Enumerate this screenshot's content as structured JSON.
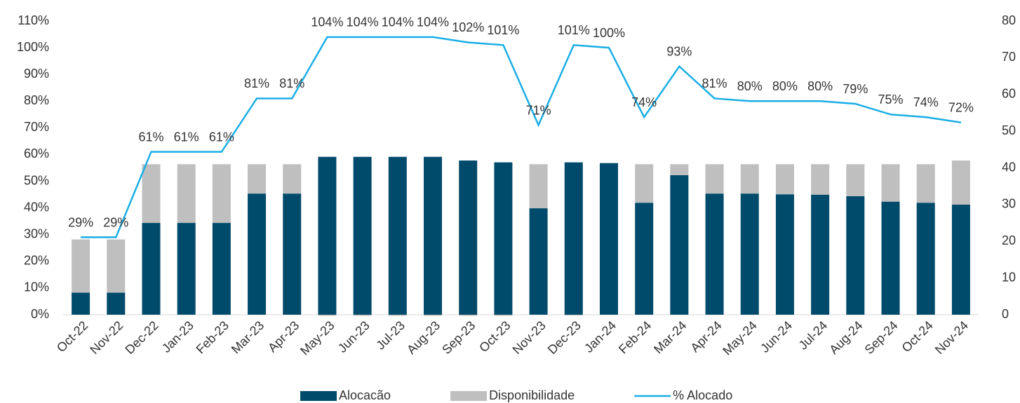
{
  "chart_data": {
    "type": "combo",
    "categories": [
      "Oct-22",
      "Nov-22",
      "Dec-22",
      "Jan-23",
      "Feb-23",
      "Mar-23",
      "Apr-23",
      "May-23",
      "Jun-23",
      "Jul-23",
      "Aug-23",
      "Sep-23",
      "Oct-23",
      "Nov-23",
      "Dec-23",
      "Jan-24",
      "Feb-24",
      "Mar-24",
      "Apr-24",
      "May-24",
      "Jun-24",
      "Jul-24",
      "Aug-24",
      "Sep-24",
      "Oct-24",
      "Nov-24"
    ],
    "series": [
      {
        "name": "Alocacão",
        "color": "#004b6b",
        "axis": "y2",
        "values": [
          6,
          6,
          25,
          25,
          25,
          33,
          33,
          43,
          43,
          43,
          43,
          42,
          41.5,
          29,
          41.5,
          41.3,
          30.5,
          38,
          33,
          33,
          32.8,
          32.7,
          32.3,
          30.8,
          30.5,
          30
        ]
      },
      {
        "name": "Disponibilidade",
        "color": "#bfbfbf",
        "axis": "y2",
        "values": [
          14.5,
          14.5,
          16,
          16,
          16,
          8,
          8,
          -0.3,
          -0.3,
          -0.3,
          -0.3,
          -0.3,
          -0.3,
          12,
          -0.2,
          0,
          10.5,
          3,
          8,
          8,
          8.2,
          8.3,
          8.7,
          10.2,
          10.5,
          12
        ]
      },
      {
        "name": "% Alocado",
        "color": "#1aaee5",
        "axis": "y",
        "values": [
          29,
          29,
          61,
          61,
          61,
          81,
          81,
          104,
          104,
          104,
          104,
          102,
          101,
          71,
          101,
          100,
          74,
          93,
          81,
          80,
          80,
          80,
          79,
          75,
          74,
          72
        ],
        "value_labels": [
          "29%",
          "29%",
          "61%",
          "61%",
          "61%",
          "81%",
          "81%",
          "104%",
          "104%",
          "104%",
          "104%",
          "102%",
          "101%",
          "71%",
          "101%",
          "100%",
          "74%",
          "93%",
          "81%",
          "80%",
          "80%",
          "80%",
          "79%",
          "75%",
          "74%",
          "72%"
        ]
      }
    ],
    "ylim": [
      0,
      110
    ],
    "yticks": [
      {
        "value": 0,
        "label": "0%"
      },
      {
        "value": 10,
        "label": "10%"
      },
      {
        "value": 20,
        "label": "20%"
      },
      {
        "value": 30,
        "label": "30%"
      },
      {
        "value": 40,
        "label": "40%"
      },
      {
        "value": 50,
        "label": "50%"
      },
      {
        "value": 60,
        "label": "60%"
      },
      {
        "value": 70,
        "label": "70%"
      },
      {
        "value": 80,
        "label": "80%"
      },
      {
        "value": 90,
        "label": "90%"
      },
      {
        "value": 100,
        "label": "100%"
      },
      {
        "value": 110,
        "label": "110%"
      }
    ],
    "y2lim": [
      0,
      80
    ],
    "y2ticks": [
      0,
      10,
      20,
      30,
      40,
      50,
      60,
      70,
      80
    ],
    "grid": false,
    "legend": "bottom"
  }
}
